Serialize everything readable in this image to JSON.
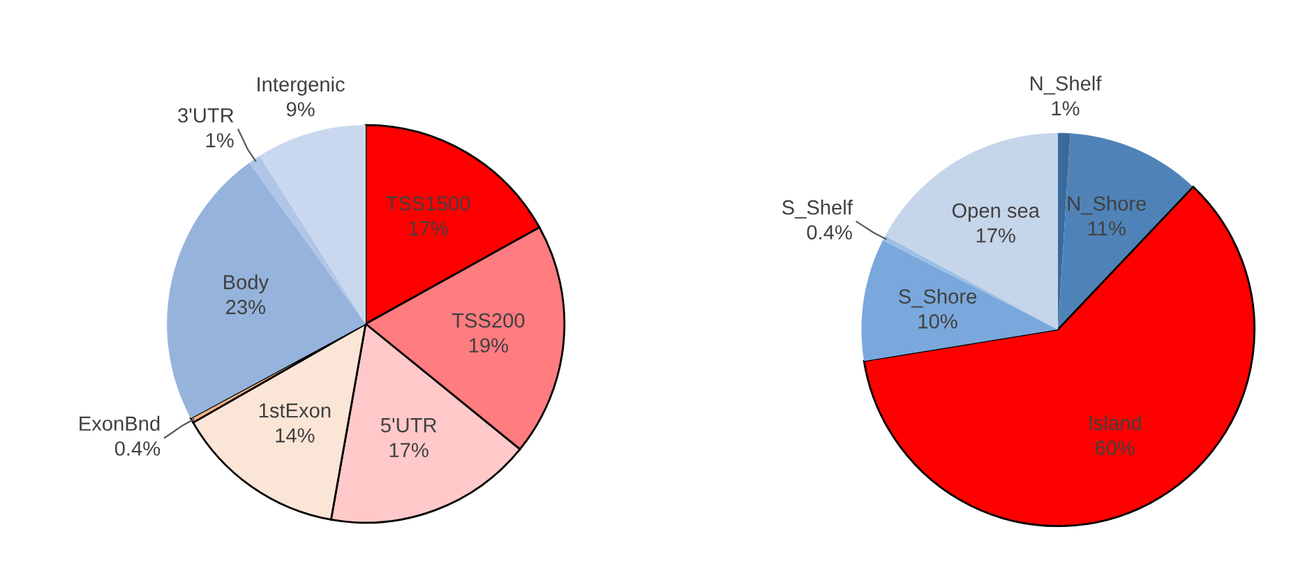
{
  "chart_data": [
    {
      "type": "pie",
      "categories": [
        "TSS1500",
        "TSS200",
        "5'UTR",
        "1stExon",
        "ExonBnd",
        "Body",
        "3'UTR",
        "Intergenic"
      ],
      "values": [
        17,
        19,
        17,
        14,
        0.4,
        23,
        1,
        9
      ],
      "value_labels": [
        "17%",
        "19%",
        "17%",
        "14%",
        "0.4%",
        "23%",
        "1%",
        "9%"
      ],
      "colors": [
        "#ff0000",
        "#ff7c80",
        "#ffc9c9",
        "#fbe5d6",
        "#f4b183",
        "#95b3dc",
        "#b0c6e6",
        "#c9d8ee"
      ]
    },
    {
      "type": "pie",
      "categories": [
        "N_Shelf",
        "N_Shore",
        "Island",
        "S_Shore",
        "S_Shelf",
        "Open sea"
      ],
      "values": [
        1,
        11,
        60,
        10,
        0.4,
        17
      ],
      "value_labels": [
        "1%",
        "11%",
        "60%",
        "10%",
        "0.4%",
        "17%"
      ],
      "colors": [
        "#3a6a9c",
        "#4f83b8",
        "#ff0000",
        "#7aa8dc",
        "#9dbfe4",
        "#c5d5ea"
      ]
    }
  ]
}
